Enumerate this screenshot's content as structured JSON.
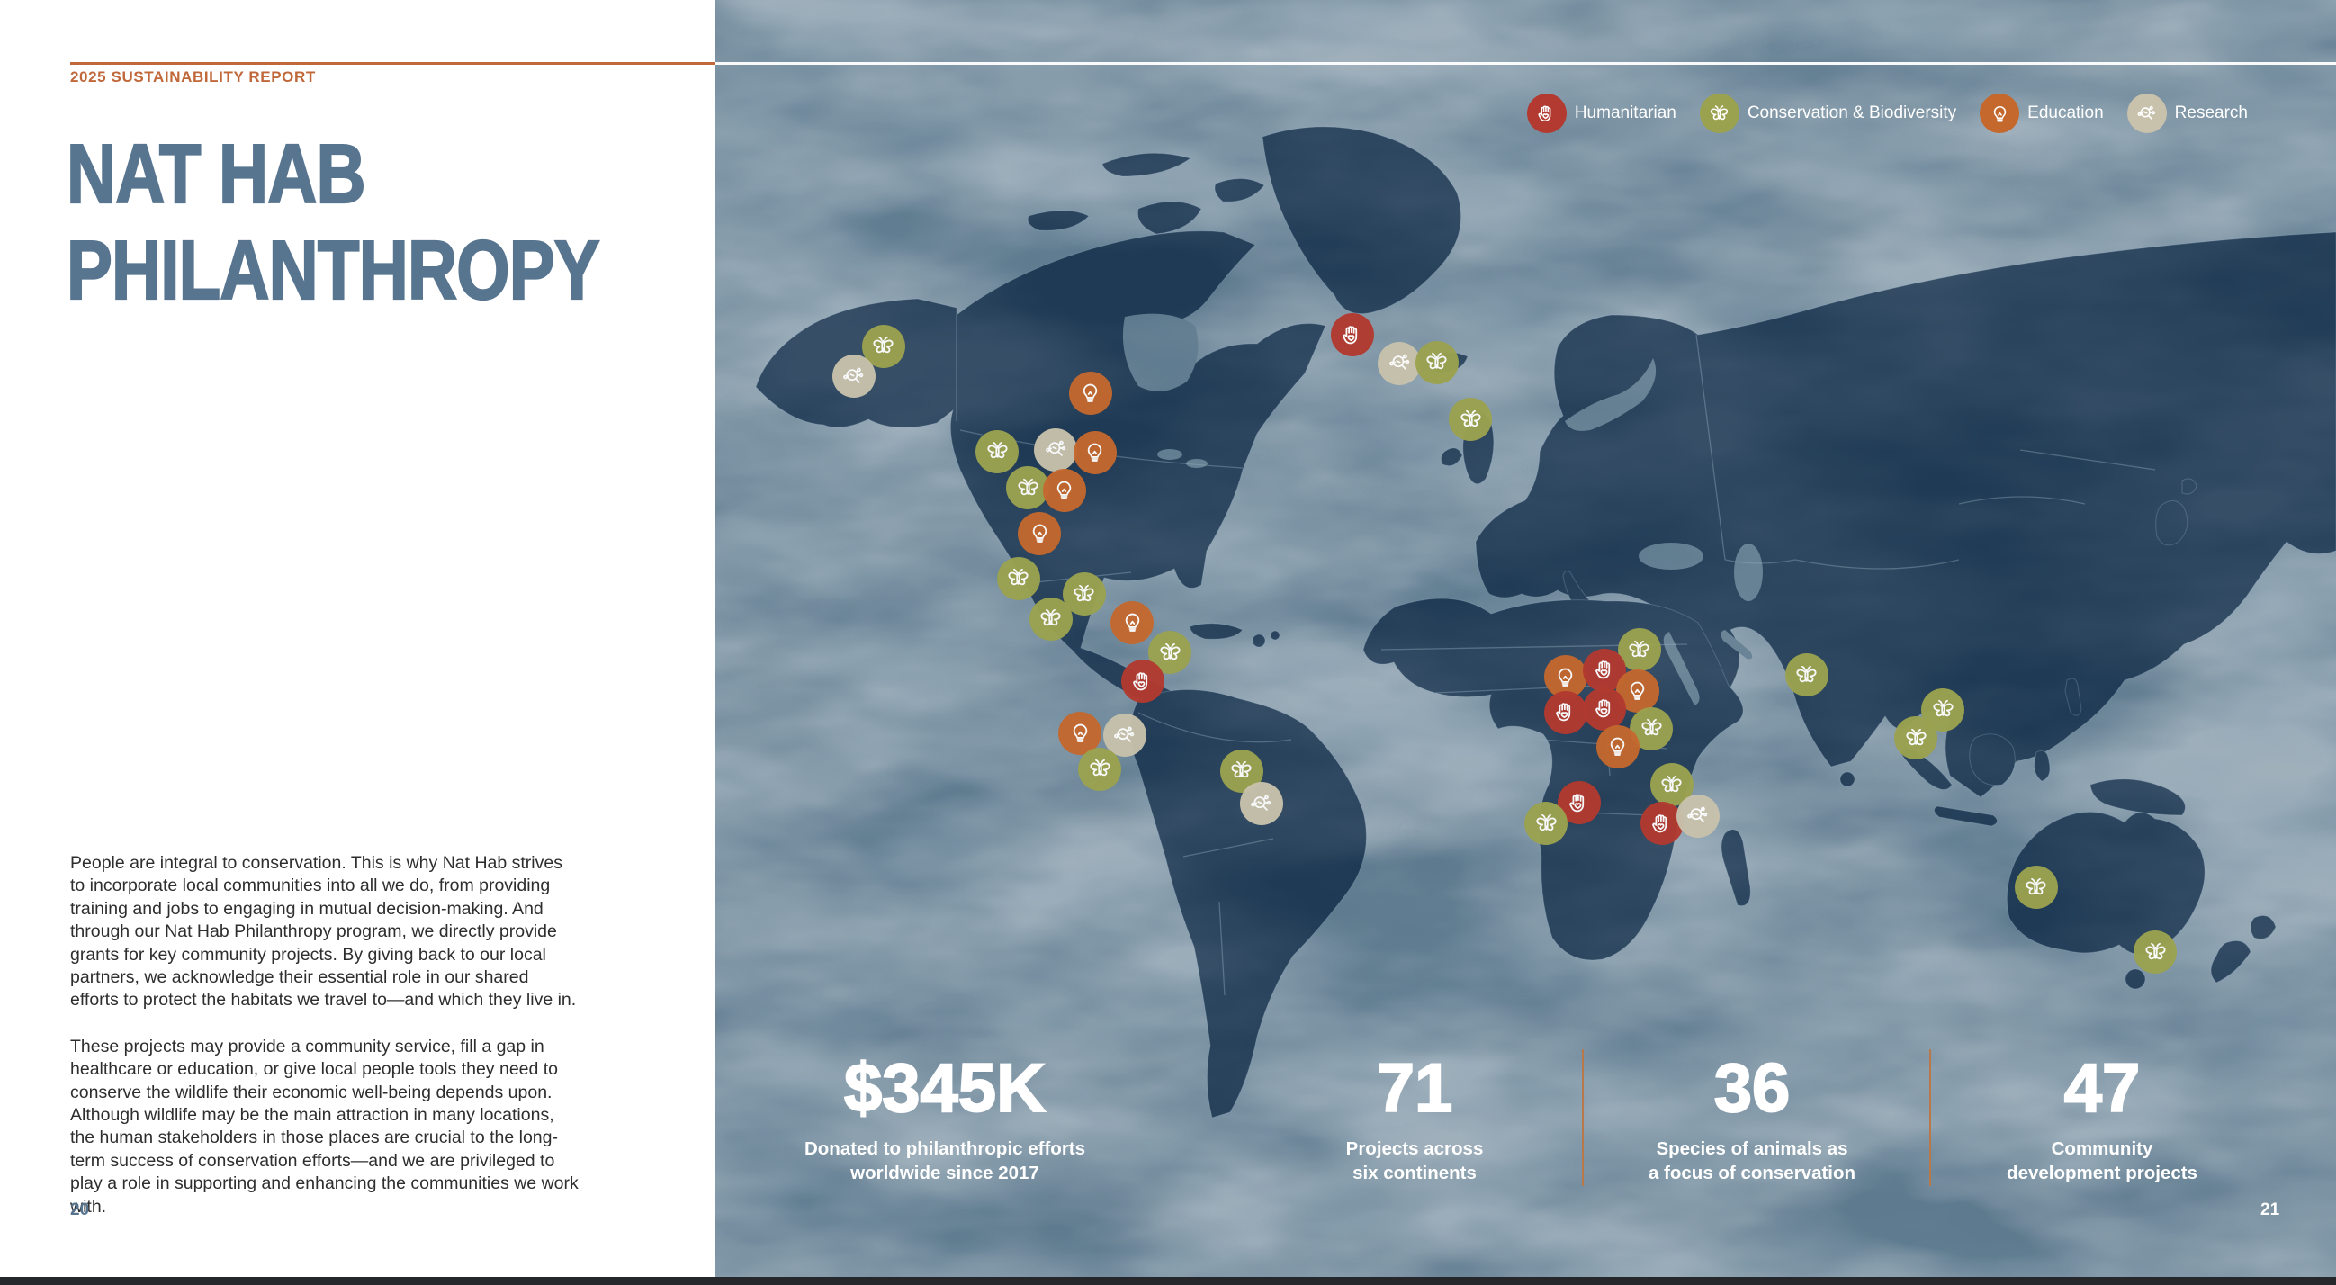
{
  "doc": {
    "eyebrow": "2025 SUSTAINABILITY REPORT",
    "title_line1": "NAT HAB",
    "title_line2": "PHILANTHROPY",
    "para1": "People are integral to conservation. This is why Nat Hab strives to incorporate local communities into all we do, from providing training and jobs to engaging in mutual decision-making. And through our Nat Hab Philanthropy program, we directly provide grants for key community projects. By giving back to our local partners, we acknowledge their essential role in our shared efforts to protect the habitats we travel to—and which they live in.",
    "para2": "These projects may provide a community service, fill a gap in healthcare or education, or give local people tools they need to conserve the wildlife their economic well-being depends upon. Although wildlife may be the main attraction in many locations, the human stakeholders in those places are crucial to the long-term success of conservation efforts—and we are privileged to play a role in supporting and enhancing the communities we work with.",
    "page_left": "20",
    "page_right": "21"
  },
  "legend": {
    "items": [
      {
        "type": "humanitarian",
        "label": "Humanitarian",
        "color": "#b23a30"
      },
      {
        "type": "conservation",
        "label": "Conservation & Biodiversity",
        "color": "#9ba24f"
      },
      {
        "type": "education",
        "label": "Education",
        "color": "#c4682e"
      },
      {
        "type": "research",
        "label": "Research",
        "color": "#c8c2ac"
      }
    ]
  },
  "stats": [
    {
      "value": "$345K",
      "caption": "Donated to philanthropic efforts\nworldwide since 2017"
    },
    {
      "value": "71",
      "caption": "Projects across\nsix continents"
    },
    {
      "value": "36",
      "caption": "Species of animals as\na focus of conservation"
    },
    {
      "value": "47",
      "caption": "Community\ndevelopment projects"
    }
  ],
  "map": {
    "markers": [
      {
        "type": "conservation",
        "x": 10.38,
        "y": 27.11
      },
      {
        "type": "research",
        "x": 8.55,
        "y": 29.44
      },
      {
        "type": "education",
        "x": 23.15,
        "y": 30.77
      },
      {
        "type": "conservation",
        "x": 17.38,
        "y": 35.35
      },
      {
        "type": "research",
        "x": 20.99,
        "y": 35.21
      },
      {
        "type": "education",
        "x": 23.43,
        "y": 35.42
      },
      {
        "type": "conservation",
        "x": 19.27,
        "y": 38.17
      },
      {
        "type": "education",
        "x": 21.54,
        "y": 38.38
      },
      {
        "type": "education",
        "x": 19.99,
        "y": 41.76
      },
      {
        "type": "conservation",
        "x": 18.71,
        "y": 45.28
      },
      {
        "type": "conservation",
        "x": 22.76,
        "y": 46.48
      },
      {
        "type": "conservation",
        "x": 20.71,
        "y": 48.45
      },
      {
        "type": "education",
        "x": 25.71,
        "y": 48.73
      },
      {
        "type": "conservation",
        "x": 28.04,
        "y": 51.06
      },
      {
        "type": "humanitarian",
        "x": 26.37,
        "y": 53.31
      },
      {
        "type": "education",
        "x": 22.49,
        "y": 57.39
      },
      {
        "type": "research",
        "x": 25.26,
        "y": 57.54
      },
      {
        "type": "conservation",
        "x": 23.71,
        "y": 60.21
      },
      {
        "type": "conservation",
        "x": 32.48,
        "y": 60.35
      },
      {
        "type": "research",
        "x": 33.7,
        "y": 62.89
      },
      {
        "type": "humanitarian",
        "x": 39.31,
        "y": 26.2
      },
      {
        "type": "research",
        "x": 42.2,
        "y": 28.45
      },
      {
        "type": "conservation",
        "x": 44.53,
        "y": 28.38
      },
      {
        "type": "conservation",
        "x": 46.59,
        "y": 32.82
      },
      {
        "type": "conservation",
        "x": 57.02,
        "y": 50.85
      },
      {
        "type": "education",
        "x": 52.47,
        "y": 52.96
      },
      {
        "type": "humanitarian",
        "x": 54.86,
        "y": 52.46
      },
      {
        "type": "education",
        "x": 56.91,
        "y": 54.08
      },
      {
        "type": "humanitarian",
        "x": 52.47,
        "y": 55.77
      },
      {
        "type": "humanitarian",
        "x": 54.86,
        "y": 55.49
      },
      {
        "type": "conservation",
        "x": 57.75,
        "y": 57.04
      },
      {
        "type": "education",
        "x": 55.69,
        "y": 58.45
      },
      {
        "type": "conservation",
        "x": 59.02,
        "y": 61.41
      },
      {
        "type": "humanitarian",
        "x": 53.3,
        "y": 62.82
      },
      {
        "type": "conservation",
        "x": 51.25,
        "y": 64.44
      },
      {
        "type": "humanitarian",
        "x": 58.41,
        "y": 64.44
      },
      {
        "type": "research",
        "x": 60.63,
        "y": 63.87
      },
      {
        "type": "conservation",
        "x": 67.35,
        "y": 52.82
      },
      {
        "type": "conservation",
        "x": 75.74,
        "y": 55.56
      },
      {
        "type": "conservation",
        "x": 74.07,
        "y": 57.75
      },
      {
        "type": "conservation",
        "x": 81.51,
        "y": 69.44
      },
      {
        "type": "conservation",
        "x": 88.84,
        "y": 74.51
      }
    ]
  },
  "colors": {
    "accent_orange": "#c0683a",
    "title_blue": "#587590",
    "ocean": "#5e7a8e",
    "land": "#1f3a55",
    "divider": "#b9784a",
    "bottom_bar": "#25272a"
  }
}
